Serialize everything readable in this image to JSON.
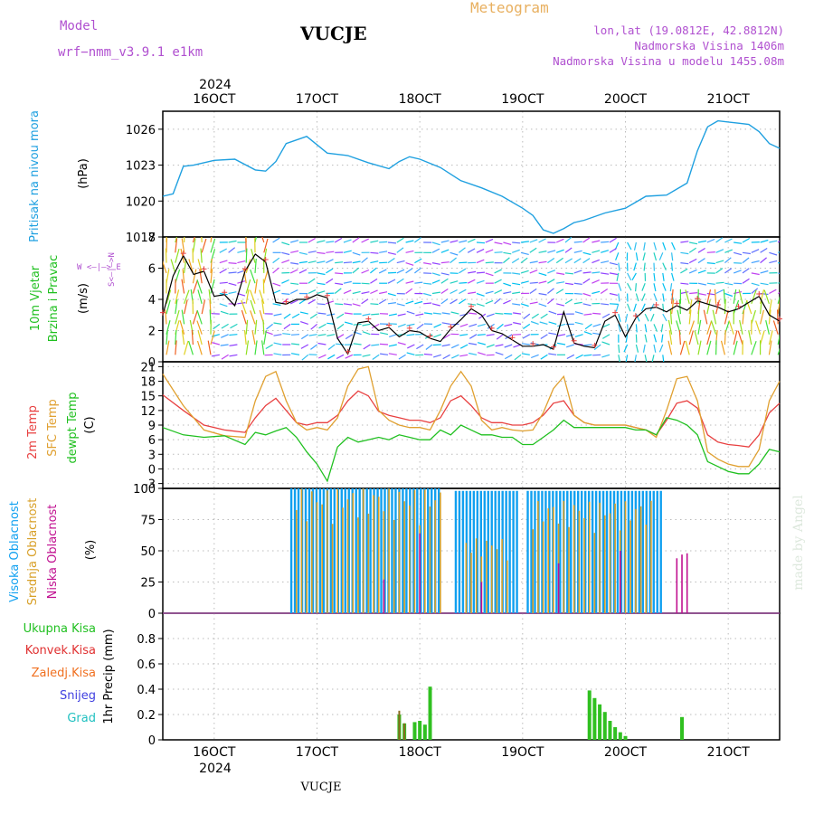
{
  "header": {
    "model_label": "Model",
    "model_name": "wrf−nmm_v3.9.1  e1km",
    "station_title": "VUCJE",
    "meteogram_label": "Meteogram",
    "lonlat": "lon,lat (19.0812E, 42.8812N)",
    "elevation": "Nadmorska Visina 1406m",
    "model_elevation": "Nadmorska Visina u modelu 1455.08m"
  },
  "footer": {
    "station": "VUCJE"
  },
  "watermark": "made by Angel",
  "axis": {
    "top_year": "2024",
    "bottom_year": "2024",
    "date_ticks": [
      "16OCT",
      "17OCT",
      "18OCT",
      "19OCT",
      "20OCT",
      "21OCT"
    ]
  },
  "colors": {
    "pressure": "#1fa0e0",
    "temp2m": "#e84040",
    "sfc": "#e0a030",
    "dew": "#20c020",
    "high_cloud": "#10a0f0",
    "mid_cloud": "#d8a028",
    "low_cloud": "#c01090",
    "total_precip": "#30c020",
    "conv_precip": "#e03030",
    "frz_precip": "#f07020",
    "snow": "#4040e0",
    "hail": "#20c0c0"
  },
  "panels": {
    "pressure": {
      "label": "Pritisak na nivou mora",
      "unit": "(hPa)",
      "ticks": [
        "1017",
        "1020",
        "1023",
        "1026"
      ]
    },
    "wind": {
      "label_line1": "10m Vjetar",
      "label_line2": "Brzina i Pravac",
      "unit": "(m/s)",
      "compass": "W <—|—> E",
      "compass_ns": "S<—|—>N",
      "ticks": [
        "0",
        "2",
        "4",
        "6",
        "8"
      ]
    },
    "temp": {
      "label_2m": "2m Temp",
      "label_sfc": "SFC Temp",
      "label_dew": "dewpt Temp",
      "unit": "(C)",
      "ticks": [
        "-3",
        "0",
        "3",
        "6",
        "9",
        "12",
        "15",
        "18",
        "21"
      ]
    },
    "cloud": {
      "label_high": "Visoka Oblacnost",
      "label_mid": "Srednja Oblacnost",
      "label_low": "Niska Oblacnost",
      "unit": "(%)",
      "ticks": [
        "0",
        "25",
        "50",
        "75",
        "100"
      ]
    },
    "precip": {
      "label_total": "Ukupna Kisa",
      "label_conv": "Konvek.Kisa",
      "label_frz": "Zaledj.Kisa",
      "label_snow": "Snijeg",
      "label_hail": "Grad",
      "unit": "1hr Precip (mm)",
      "ticks": [
        "0",
        "0.2",
        "0.4",
        "0.6",
        "0.8"
      ]
    }
  },
  "chart_data": [
    {
      "type": "line",
      "name": "pressure",
      "x_unit": "day of October 2024",
      "ylim": [
        1017,
        1027.5
      ],
      "x": [
        15.5,
        15.6,
        15.7,
        15.8,
        16.0,
        16.2,
        16.4,
        16.5,
        16.6,
        16.7,
        16.9,
        17.1,
        17.3,
        17.5,
        17.7,
        17.8,
        17.9,
        18.0,
        18.2,
        18.4,
        18.6,
        18.8,
        19.0,
        19.1,
        19.2,
        19.3,
        19.4,
        19.5,
        19.6,
        19.8,
        20.0,
        20.2,
        20.4,
        20.6,
        20.7,
        20.8,
        20.9,
        21.0,
        21.1,
        21.2,
        21.3,
        21.4,
        21.5
      ],
      "y": [
        1020.4,
        1020.6,
        1022.9,
        1023.0,
        1023.4,
        1023.5,
        1022.6,
        1022.5,
        1023.3,
        1024.8,
        1025.4,
        1024.0,
        1023.8,
        1023.2,
        1022.7,
        1023.3,
        1023.7,
        1023.5,
        1022.8,
        1021.7,
        1021.1,
        1020.4,
        1019.4,
        1018.8,
        1017.6,
        1017.3,
        1017.7,
        1018.2,
        1018.4,
        1019.0,
        1019.4,
        1020.4,
        1020.5,
        1021.5,
        1024.2,
        1026.2,
        1026.7,
        1026.6,
        1026.5,
        1026.4,
        1025.8,
        1024.8,
        1024.4
      ],
      "y_ticks": [
        1017,
        1020,
        1023,
        1026
      ]
    },
    {
      "type": "line",
      "name": "wind_speed",
      "x_unit": "day of October 2024",
      "ylim": [
        0,
        8
      ],
      "x": [
        15.5,
        15.6,
        15.7,
        15.8,
        15.9,
        16.0,
        16.1,
        16.2,
        16.3,
        16.4,
        16.5,
        16.6,
        16.7,
        16.8,
        16.9,
        17.0,
        17.1,
        17.2,
        17.3,
        17.4,
        17.5,
        17.6,
        17.7,
        17.8,
        17.9,
        18.0,
        18.1,
        18.2,
        18.3,
        18.4,
        18.5,
        18.6,
        18.7,
        18.8,
        18.9,
        19.0,
        19.1,
        19.2,
        19.3,
        19.4,
        19.5,
        19.6,
        19.7,
        19.8,
        19.9,
        20.0,
        20.1,
        20.2,
        20.3,
        20.4,
        20.5,
        20.6,
        20.7,
        20.8,
        20.9,
        21.0,
        21.1,
        21.2,
        21.3,
        21.4,
        21.5
      ],
      "y": [
        3.0,
        5.5,
        6.8,
        5.6,
        5.8,
        4.2,
        4.3,
        3.6,
        5.8,
        6.9,
        6.4,
        3.8,
        3.7,
        4.0,
        4.0,
        4.3,
        4.1,
        1.5,
        0.5,
        2.5,
        2.6,
        2.0,
        2.2,
        1.6,
        2.0,
        1.9,
        1.5,
        1.3,
        2.1,
        2.7,
        3.4,
        3.0,
        2.0,
        1.8,
        1.4,
        1.0,
        1.0,
        1.1,
        0.8,
        3.2,
        1.2,
        1.0,
        0.9,
        2.6,
        3.0,
        1.6,
        2.8,
        3.4,
        3.5,
        3.2,
        3.6,
        3.3,
        3.9,
        3.7,
        3.5,
        3.2,
        3.4,
        3.8,
        4.2,
        3.0,
        2.6
      ],
      "y_ticks": [
        0,
        2,
        4,
        6,
        8
      ]
    },
    {
      "type": "line",
      "name": "temperature",
      "x_unit": "day of October 2024",
      "ylim": [
        -4,
        22
      ],
      "x": [
        15.5,
        15.7,
        15.9,
        16.1,
        16.3,
        16.4,
        16.5,
        16.6,
        16.7,
        16.8,
        16.9,
        17.0,
        17.1,
        17.2,
        17.3,
        17.4,
        17.5,
        17.6,
        17.7,
        17.8,
        17.9,
        18.0,
        18.1,
        18.2,
        18.3,
        18.4,
        18.5,
        18.6,
        18.7,
        18.8,
        18.9,
        19.0,
        19.1,
        19.2,
        19.3,
        19.4,
        19.5,
        19.6,
        19.7,
        19.8,
        19.9,
        20.0,
        20.1,
        20.2,
        20.3,
        20.4,
        20.5,
        20.6,
        20.7,
        20.8,
        20.9,
        21.0,
        21.1,
        21.2,
        21.3,
        21.4,
        21.5
      ],
      "series": [
        {
          "name": "2m Temp",
          "y": [
            15.2,
            12.0,
            9.0,
            8.0,
            7.5,
            10.5,
            13.0,
            14.5,
            12.0,
            9.5,
            9.0,
            9.5,
            9.5,
            11.0,
            14.0,
            16.0,
            15.0,
            11.8,
            11.0,
            10.5,
            10.0,
            10.0,
            9.5,
            10.5,
            14.0,
            15.0,
            13.0,
            10.5,
            9.5,
            9.5,
            9.0,
            9.0,
            9.5,
            11.0,
            13.5,
            14.0,
            11.0,
            9.5,
            9.0,
            9.0,
            9.0,
            9.0,
            8.5,
            8.0,
            7.0,
            10.0,
            13.5,
            14.0,
            12.5,
            7.0,
            5.5,
            5.0,
            4.8,
            4.5,
            7.0,
            11.5,
            13.5
          ]
        },
        {
          "name": "SFC Temp",
          "y": [
            19.5,
            13.0,
            8.0,
            6.8,
            6.5,
            14.0,
            19.0,
            20.0,
            14.0,
            9.5,
            8.0,
            8.5,
            8.0,
            10.5,
            17.0,
            20.5,
            21.0,
            12.0,
            10.0,
            9.0,
            8.5,
            8.5,
            8.0,
            12.0,
            17.0,
            20.0,
            17.0,
            10.0,
            8.0,
            8.5,
            8.0,
            7.8,
            8.0,
            11.5,
            16.5,
            19.0,
            11.0,
            9.5,
            9.0,
            9.0,
            9.0,
            9.0,
            8.5,
            8.0,
            6.5,
            12.0,
            18.5,
            19.0,
            14.0,
            3.5,
            2.0,
            1.0,
            0.5,
            0.5,
            4.0,
            14.0,
            18.0
          ]
        },
        {
          "name": "dewpt Temp",
          "y": [
            8.5,
            7.0,
            6.5,
            6.8,
            5.0,
            7.5,
            7.0,
            7.8,
            8.5,
            6.5,
            3.5,
            1.0,
            -2.5,
            4.5,
            6.5,
            5.5,
            6.0,
            6.5,
            6.0,
            7.0,
            6.5,
            6.0,
            6.0,
            8.0,
            7.0,
            9.0,
            8.0,
            7.0,
            7.0,
            6.5,
            6.5,
            5.0,
            5.0,
            6.5,
            8.0,
            10.0,
            8.5,
            8.5,
            8.5,
            8.5,
            8.5,
            8.5,
            8.0,
            8.0,
            7.0,
            10.5,
            10.0,
            9.0,
            7.0,
            1.5,
            0.5,
            -0.5,
            -1.0,
            -1.0,
            1.0,
            4.0,
            3.5
          ]
        }
      ],
      "y_ticks": [
        -3,
        0,
        3,
        6,
        9,
        12,
        15,
        18,
        21
      ]
    },
    {
      "type": "bar",
      "name": "cloud_cover",
      "x_unit": "day of October 2024",
      "ylim": [
        0,
        100
      ],
      "series": [
        {
          "name": "Visoka Oblacnost",
          "segments": [
            {
              "from": 16.75,
              "to": 18.2,
              "value": 100
            },
            {
              "from": 18.35,
              "to": 18.95,
              "value": 98
            },
            {
              "from": 19.05,
              "to": 20.35,
              "value": 98
            }
          ]
        },
        {
          "name": "Srednja Oblacnost",
          "segments": [
            {
              "from": 16.8,
              "to": 18.25,
              "value": 100
            },
            {
              "from": 18.45,
              "to": 18.9,
              "value": 60
            },
            {
              "from": 19.1,
              "to": 20.3,
              "value": 90
            }
          ]
        },
        {
          "name": "Niska Oblacnost",
          "points": [
            {
              "x": 17.65,
              "y": 27
            },
            {
              "x": 18.0,
              "y": 64
            },
            {
              "x": 18.6,
              "y": 25
            },
            {
              "x": 19.35,
              "y": 40
            },
            {
              "x": 19.95,
              "y": 50
            },
            {
              "x": 20.5,
              "y": 44
            },
            {
              "x": 20.55,
              "y": 47
            },
            {
              "x": 20.6,
              "y": 48
            }
          ]
        }
      ],
      "y_ticks": [
        0,
        25,
        50,
        75,
        100
      ]
    },
    {
      "type": "bar",
      "name": "precipitation",
      "x_unit": "day of October 2024",
      "ylim": [
        0,
        1.0
      ],
      "series": [
        {
          "name": "Ukupna Kisa",
          "x": [
            17.8,
            17.85,
            17.95,
            18.0,
            18.05,
            18.1,
            19.65,
            19.7,
            19.75,
            19.8,
            19.85,
            19.9,
            19.95,
            20.0,
            20.55
          ],
          "y": [
            0.2,
            0.13,
            0.14,
            0.15,
            0.12,
            0.42,
            0.39,
            0.33,
            0.28,
            0.22,
            0.15,
            0.1,
            0.06,
            0.03,
            0.18
          ]
        },
        {
          "name": "Konvek.Kisa",
          "x": [
            17.8,
            17.85
          ],
          "y": [
            0.23,
            0.13
          ]
        },
        {
          "name": "Zaledj.Kisa",
          "x": [],
          "y": []
        },
        {
          "name": "Snijeg",
          "x": [],
          "y": []
        },
        {
          "name": "Grad",
          "x": [],
          "y": []
        }
      ],
      "y_ticks": [
        0,
        0.2,
        0.4,
        0.6,
        0.8
      ]
    }
  ]
}
